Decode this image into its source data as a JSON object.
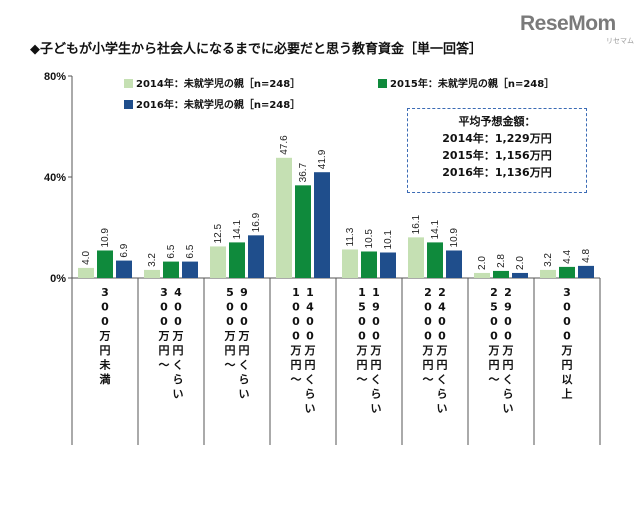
{
  "logo": {
    "text": "ReseMom",
    "sub": "リセマム"
  },
  "title": "◆子どもが小学生から社会人になるまでに必要だと思う教育資金［単一回答］",
  "avg_box": {
    "heading": "平均予想金額：",
    "lines": [
      "2014年：1,229万円",
      "2015年：1,156万円",
      "2016年：1,136万円"
    ]
  },
  "colors": {
    "2014": "#c5e0b3",
    "2015": "#0f8a3c",
    "2016": "#1f4e8c",
    "axis": "#555555",
    "grid": "#bbbbbb"
  },
  "chart_data": {
    "type": "bar",
    "title": "子どもが小学生から社会人になるまでに必要だと思う教育資金［単一回答］",
    "categories": [
      "300万円未満",
      "300万円～400万円くらい",
      "500万円～900万円くらい",
      "1000万円～1400万円くらい",
      "1500万円～1900万円くらい",
      "2000万円～2400万円くらい",
      "2500万円～2900万円くらい",
      "3000万円以上"
    ],
    "category_lines": [
      [
        [
          "3",
          "0",
          "0",
          "万",
          "円",
          "未",
          "満"
        ]
      ],
      [
        [
          "4",
          "0",
          "0",
          "万",
          "円",
          "く",
          "ら",
          "い"
        ],
        [
          "3",
          "0",
          "0",
          "万",
          "円",
          "～"
        ]
      ],
      [
        [
          "9",
          "0",
          "0",
          "万",
          "円",
          "く",
          "ら",
          "い"
        ],
        [
          "5",
          "0",
          "0",
          "万",
          "円",
          "～"
        ]
      ],
      [
        [
          "1",
          "4",
          "0",
          "0",
          "万",
          "円",
          "く",
          "ら",
          "い"
        ],
        [
          "1",
          "0",
          "0",
          "0",
          "万",
          "円",
          "～"
        ]
      ],
      [
        [
          "1",
          "9",
          "0",
          "0",
          "万",
          "円",
          "く",
          "ら",
          "い"
        ],
        [
          "1",
          "5",
          "0",
          "0",
          "万",
          "円",
          "～"
        ]
      ],
      [
        [
          "2",
          "4",
          "0",
          "0",
          "万",
          "円",
          "く",
          "ら",
          "い"
        ],
        [
          "2",
          "0",
          "0",
          "0",
          "万",
          "円",
          "～"
        ]
      ],
      [
        [
          "2",
          "9",
          "0",
          "0",
          "万",
          "円",
          "く",
          "ら",
          "い"
        ],
        [
          "2",
          "5",
          "0",
          "0",
          "万",
          "円",
          "～"
        ]
      ],
      [
        [
          "3",
          "0",
          "0",
          "0",
          "万",
          "円",
          "以",
          "上"
        ]
      ]
    ],
    "series": [
      {
        "name": "2014年：未就学児の親［n=248］",
        "key": "2014",
        "values": [
          4.0,
          3.2,
          12.5,
          47.6,
          11.3,
          16.1,
          2.0,
          3.2
        ]
      },
      {
        "name": "2015年：未就学児の親［n=248］",
        "key": "2015",
        "values": [
          10.9,
          6.5,
          14.1,
          36.7,
          10.5,
          14.1,
          2.8,
          4.4
        ]
      },
      {
        "name": "2016年：未就学児の親［n=248］",
        "key": "2016",
        "values": [
          6.9,
          6.5,
          16.9,
          41.9,
          10.1,
          10.9,
          2.0,
          4.8
        ]
      }
    ],
    "ylim": [
      0,
      80
    ],
    "yticks": [
      "0%",
      "40%",
      "80%"
    ],
    "grid": false,
    "legend": "top-left"
  }
}
